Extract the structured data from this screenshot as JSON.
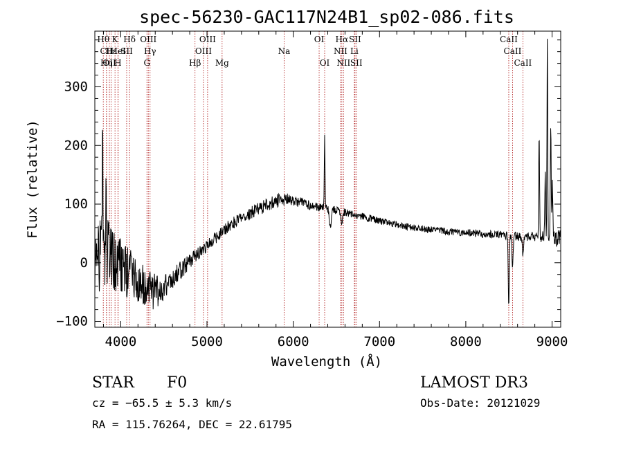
{
  "chart_data": {
    "type": "line",
    "title": "spec-56230-GAC117N24B1_sp02-086.fits",
    "xlabel": "Wavelength (Å)",
    "ylabel": "Flux (relative)",
    "xlim": [
      3700,
      9100
    ],
    "ylim": [
      -110,
      395
    ],
    "xticks": [
      4000,
      5000,
      6000,
      7000,
      8000,
      9000
    ],
    "xtick_labels": [
      "4000",
      "5000",
      "6000",
      "7000",
      "8000",
      "9000"
    ],
    "yticks": [
      -100,
      0,
      100,
      200,
      300
    ],
    "ytick_labels": [
      "−100",
      "0",
      "100",
      "200",
      "300"
    ],
    "spectrum_anchors": [
      [
        3700,
        20
      ],
      [
        3760,
        10
      ],
      [
        3850,
        20
      ],
      [
        3950,
        0
      ],
      [
        4050,
        -15
      ],
      [
        4150,
        -25
      ],
      [
        4250,
        -35
      ],
      [
        4350,
        -50
      ],
      [
        4450,
        -45
      ],
      [
        4550,
        -35
      ],
      [
        4650,
        -20
      ],
      [
        4750,
        -5
      ],
      [
        4850,
        10
      ],
      [
        4950,
        20
      ],
      [
        5050,
        35
      ],
      [
        5150,
        50
      ],
      [
        5250,
        62
      ],
      [
        5350,
        72
      ],
      [
        5450,
        80
      ],
      [
        5550,
        88
      ],
      [
        5650,
        95
      ],
      [
        5750,
        102
      ],
      [
        5850,
        108
      ],
      [
        5950,
        108
      ],
      [
        6050,
        104
      ],
      [
        6150,
        100
      ],
      [
        6250,
        97
      ],
      [
        6400,
        92
      ],
      [
        6550,
        88
      ],
      [
        6700,
        82
      ],
      [
        6900,
        75
      ],
      [
        7100,
        68
      ],
      [
        7300,
        62
      ],
      [
        7500,
        58
      ],
      [
        7700,
        55
      ],
      [
        7900,
        52
      ],
      [
        8100,
        50
      ],
      [
        8300,
        48
      ],
      [
        8450,
        47
      ],
      [
        8600,
        45
      ],
      [
        8750,
        45
      ],
      [
        8900,
        44
      ],
      [
        9050,
        42
      ],
      [
        9100,
        40
      ]
    ],
    "spectrum_features": [
      {
        "center": 3790,
        "width": 5,
        "depth": 175
      },
      {
        "center": 3830,
        "width": 5,
        "depth": 110
      },
      {
        "center": 6364,
        "width": 4,
        "depth": 125
      },
      {
        "center": 6430,
        "width": 10,
        "depth": -30
      },
      {
        "center": 6563,
        "width": 8,
        "depth": -25
      },
      {
        "center": 8498,
        "width": 6,
        "depth": -115
      },
      {
        "center": 8542,
        "width": 6,
        "depth": -55
      },
      {
        "center": 8662,
        "width": 6,
        "depth": -30
      },
      {
        "center": 8850,
        "width": 5,
        "depth": 170
      },
      {
        "center": 8920,
        "width": 5,
        "depth": 110
      },
      {
        "center": 8945,
        "width": 4,
        "depth": 340
      },
      {
        "center": 8985,
        "width": 5,
        "depth": 200
      },
      {
        "center": 9005,
        "width": 5,
        "depth": 90
      }
    ],
    "noise_profile": [
      [
        3700,
        70
      ],
      [
        3900,
        55
      ],
      [
        4100,
        45
      ],
      [
        4300,
        35
      ],
      [
        4500,
        25
      ],
      [
        4800,
        12
      ],
      [
        5200,
        10
      ],
      [
        5800,
        12
      ],
      [
        6000,
        9
      ],
      [
        6500,
        7
      ],
      [
        7000,
        6
      ],
      [
        8000,
        6
      ],
      [
        8800,
        8
      ],
      [
        9100,
        15
      ]
    ],
    "line_markers": [
      {
        "label": "Hθ",
        "wavelength": 3798,
        "row": 0
      },
      {
        "label": "CII",
        "wavelength": 3835,
        "row": 1
      },
      {
        "label": "OII",
        "wavelength": 3869,
        "row": 2
      },
      {
        "label": "Hε",
        "wavelength": 3889,
        "row": 1
      },
      {
        "label": "K",
        "wavelength": 3934,
        "row": 0
      },
      {
        "label": "Hη",
        "wavelength": 3835,
        "row": 2
      },
      {
        "label": "HeI",
        "wavelength": 3970,
        "row": 1
      },
      {
        "label": "H",
        "wavelength": 3968,
        "row": 2
      },
      {
        "label": "SII",
        "wavelength": 4069,
        "row": 1
      },
      {
        "label": "Hδ",
        "wavelength": 4102,
        "row": 0
      },
      {
        "label": "OIII",
        "wavelength": 4320,
        "row": 0
      },
      {
        "label": "Hγ",
        "wavelength": 4340,
        "row": 1
      },
      {
        "label": "G",
        "wavelength": 4304,
        "row": 2
      },
      {
        "label": "Hβ",
        "wavelength": 4861,
        "row": 2
      },
      {
        "label": "OIII",
        "wavelength": 4959,
        "row": 1
      },
      {
        "label": "OIII",
        "wavelength": 5007,
        "row": 0
      },
      {
        "label": "Mg",
        "wavelength": 5175,
        "row": 2
      },
      {
        "label": "Na",
        "wavelength": 5894,
        "row": 1
      },
      {
        "label": "OI",
        "wavelength": 6300,
        "row": 0
      },
      {
        "label": "OI",
        "wavelength": 6364,
        "row": 2
      },
      {
        "label": "Hα",
        "wavelength": 6563,
        "row": 0
      },
      {
        "label": "NII",
        "wavelength": 6548,
        "row": 1
      },
      {
        "label": "NII",
        "wavelength": 6583,
        "row": 2
      },
      {
        "label": "SII",
        "wavelength": 6716,
        "row": 0
      },
      {
        "label": "Li",
        "wavelength": 6708,
        "row": 1
      },
      {
        "label": "SII",
        "wavelength": 6731,
        "row": 2
      },
      {
        "label": "CaII",
        "wavelength": 8498,
        "row": 0
      },
      {
        "label": "CaII",
        "wavelength": 8542,
        "row": 1
      },
      {
        "label": "CaII",
        "wavelength": 8662,
        "row": 2
      }
    ],
    "colors": {
      "spectrum": "#000000",
      "line_markers": "#b22222",
      "axes": "#000000"
    }
  },
  "info": {
    "object_class": "STAR",
    "subclass": "F0",
    "survey": "LAMOST DR3",
    "velocity": "cz = −65.5 ± 5.3 km/s",
    "obs_date": "Obs-Date: 20121029",
    "coordinates": "RA = 115.76264, DEC =  22.61795"
  }
}
